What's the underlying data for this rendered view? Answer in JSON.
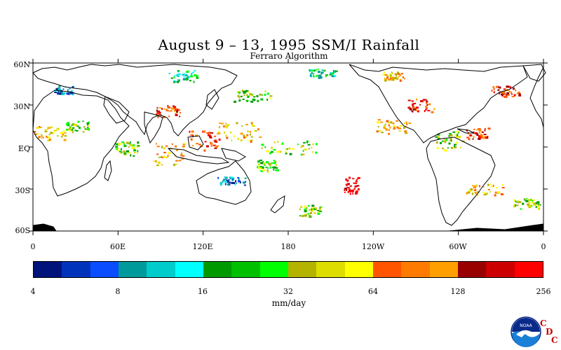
{
  "title": "August 9 – 13, 1995 SSM/I Rainfall",
  "subtitle": "Ferraro Algorithm",
  "map": {
    "lat_labels": [
      "60N",
      "30N",
      "EQ",
      "30S",
      "60S"
    ],
    "lon_labels": [
      "0",
      "60E",
      "120E",
      "180",
      "120W",
      "60W",
      "0"
    ],
    "lat_range": [
      -60,
      60
    ],
    "lon_range": [
      0,
      360
    ],
    "land_outline_color": "#000000",
    "background": "#ffffff"
  },
  "colorbar": {
    "unit": "mm/day",
    "tick_labels": [
      "4",
      "8",
      "16",
      "32",
      "64",
      "128",
      "256"
    ],
    "colors": [
      "#00137a",
      "#0033bb",
      "#0a4dff",
      "#009a9a",
      "#00cccc",
      "#00ffff",
      "#009900",
      "#00c000",
      "#00ff00",
      "#b3b300",
      "#dddd00",
      "#ffff00",
      "#ff5500",
      "#ff7a00",
      "#ffa000",
      "#990000",
      "#cc0000",
      "#ff0000"
    ]
  },
  "logo": {
    "name": "NOAA",
    "letters": [
      "C",
      "D",
      "C"
    ],
    "letter_color": "#cc0000"
  }
}
